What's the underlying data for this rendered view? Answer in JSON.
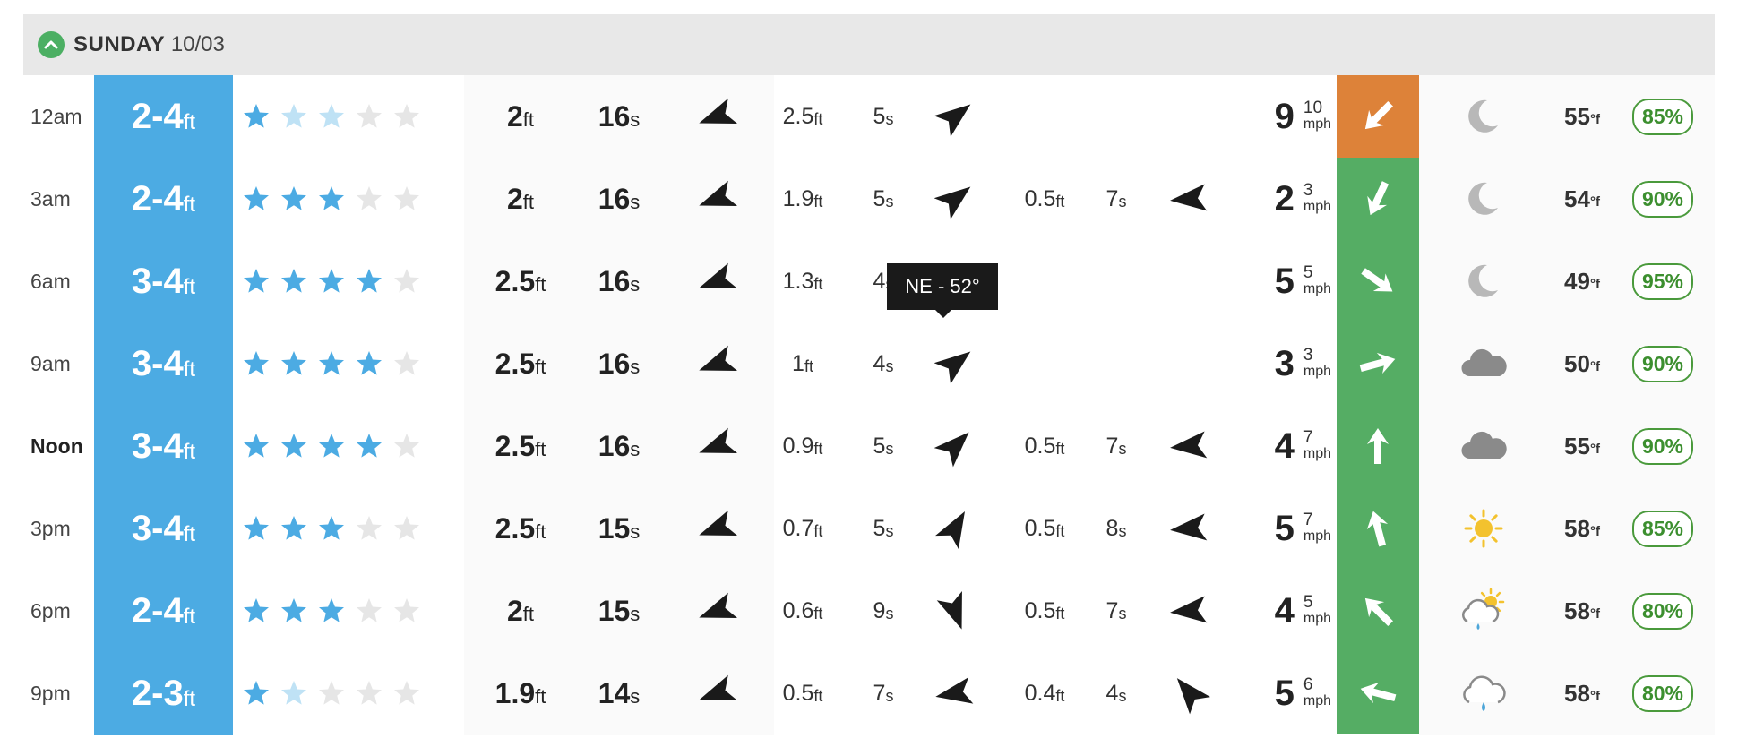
{
  "header": {
    "day_name": "SUNDAY",
    "date": "10/03",
    "collapse_icon": "chevron-up-icon"
  },
  "tooltip": {
    "text": "NE - 52°"
  },
  "colors": {
    "surf_band": "#4cabe3",
    "wind_onshore": "#dd8239",
    "wind_offshore": "#55ad64",
    "star_full": "#4cabe3",
    "star_faint": "#bfe2f5",
    "star_empty": "#e6e6e6",
    "prob_green": "#3c8f2f"
  },
  "rows": [
    {
      "time": "12am",
      "bold": false,
      "surf": "2-4",
      "surf_unit": "ft",
      "stars": [
        "full",
        "faint",
        "faint",
        "empty",
        "empty"
      ],
      "primary": {
        "height": "2",
        "height_unit": "ft",
        "period": "16",
        "period_unit": "s",
        "dir_deg": 250
      },
      "sec1": {
        "height": "2.5",
        "height_unit": "ft",
        "period": "5",
        "period_unit": "s",
        "dir_deg": 52
      },
      "sec2": null,
      "wind": {
        "speed": "9",
        "gust": "10",
        "unit": "mph",
        "dir_deg": 225,
        "color": "#dd8239"
      },
      "weather_icon": "moon-icon",
      "temp": "55",
      "temp_unit": "°f",
      "prob": "85%"
    },
    {
      "time": "3am",
      "bold": false,
      "surf": "2-4",
      "surf_unit": "ft",
      "stars": [
        "full",
        "full",
        "full",
        "empty",
        "empty"
      ],
      "primary": {
        "height": "2",
        "height_unit": "ft",
        "period": "16",
        "period_unit": "s",
        "dir_deg": 250
      },
      "sec1": {
        "height": "1.9",
        "height_unit": "ft",
        "period": "5",
        "period_unit": "s",
        "dir_deg": 52
      },
      "sec2": {
        "height": "0.5",
        "height_unit": "ft",
        "period": "7",
        "period_unit": "s",
        "dir_deg": 265
      },
      "wind": {
        "speed": "2",
        "gust": "3",
        "unit": "mph",
        "dir_deg": 205,
        "color": "#55ad64"
      },
      "weather_icon": "moon-icon",
      "temp": "54",
      "temp_unit": "°f",
      "prob": "90%"
    },
    {
      "time": "6am",
      "bold": false,
      "surf": "3-4",
      "surf_unit": "ft",
      "stars": [
        "full",
        "full",
        "full",
        "full",
        "empty"
      ],
      "primary": {
        "height": "2.5",
        "height_unit": "ft",
        "period": "16",
        "period_unit": "s",
        "dir_deg": 250
      },
      "sec1": {
        "height": "1.3",
        "height_unit": "ft",
        "period": "4",
        "period_unit": "s",
        "dir_deg": 40
      },
      "sec2": null,
      "wind": {
        "speed": "5",
        "gust": "5",
        "unit": "mph",
        "dir_deg": 125,
        "color": "#55ad64"
      },
      "weather_icon": "moon-icon",
      "temp": "49",
      "temp_unit": "°f",
      "prob": "95%"
    },
    {
      "time": "9am",
      "bold": false,
      "surf": "3-4",
      "surf_unit": "ft",
      "stars": [
        "full",
        "full",
        "full",
        "full",
        "empty"
      ],
      "primary": {
        "height": "2.5",
        "height_unit": "ft",
        "period": "16",
        "period_unit": "s",
        "dir_deg": 250
      },
      "sec1": {
        "height": "1",
        "height_unit": "ft",
        "period": "4",
        "period_unit": "s",
        "dir_deg": 52
      },
      "sec2": null,
      "wind": {
        "speed": "3",
        "gust": "3",
        "unit": "mph",
        "dir_deg": 75,
        "color": "#55ad64"
      },
      "weather_icon": "cloud-icon",
      "temp": "50",
      "temp_unit": "°f",
      "prob": "90%"
    },
    {
      "time": "Noon",
      "bold": true,
      "surf": "3-4",
      "surf_unit": "ft",
      "stars": [
        "full",
        "full",
        "full",
        "full",
        "empty"
      ],
      "primary": {
        "height": "2.5",
        "height_unit": "ft",
        "period": "16",
        "period_unit": "s",
        "dir_deg": 250
      },
      "sec1": {
        "height": "0.9",
        "height_unit": "ft",
        "period": "5",
        "period_unit": "s",
        "dir_deg": 45
      },
      "sec2": {
        "height": "0.5",
        "height_unit": "ft",
        "period": "7",
        "period_unit": "s",
        "dir_deg": 265
      },
      "wind": {
        "speed": "4",
        "gust": "7",
        "unit": "mph",
        "dir_deg": 0,
        "color": "#55ad64"
      },
      "weather_icon": "cloud-icon",
      "temp": "55",
      "temp_unit": "°f",
      "prob": "90%"
    },
    {
      "time": "3pm",
      "bold": false,
      "surf": "3-4",
      "surf_unit": "ft",
      "stars": [
        "full",
        "full",
        "full",
        "empty",
        "empty"
      ],
      "primary": {
        "height": "2.5",
        "height_unit": "ft",
        "period": "15",
        "period_unit": "s",
        "dir_deg": 250
      },
      "sec1": {
        "height": "0.7",
        "height_unit": "ft",
        "period": "5",
        "period_unit": "s",
        "dir_deg": 30
      },
      "sec2": {
        "height": "0.5",
        "height_unit": "ft",
        "period": "8",
        "period_unit": "s",
        "dir_deg": 265
      },
      "wind": {
        "speed": "5",
        "gust": "7",
        "unit": "mph",
        "dir_deg": 345,
        "color": "#55ad64"
      },
      "weather_icon": "sun-icon",
      "temp": "58",
      "temp_unit": "°f",
      "prob": "85%"
    },
    {
      "time": "6pm",
      "bold": false,
      "surf": "2-4",
      "surf_unit": "ft",
      "stars": [
        "full",
        "full",
        "full",
        "empty",
        "empty"
      ],
      "primary": {
        "height": "2",
        "height_unit": "ft",
        "period": "15",
        "period_unit": "s",
        "dir_deg": 250
      },
      "sec1": {
        "height": "0.6",
        "height_unit": "ft",
        "period": "9",
        "period_unit": "s",
        "dir_deg": 160
      },
      "sec2": {
        "height": "0.5",
        "height_unit": "ft",
        "period": "7",
        "period_unit": "s",
        "dir_deg": 265
      },
      "wind": {
        "speed": "4",
        "gust": "5",
        "unit": "mph",
        "dir_deg": 315,
        "color": "#55ad64"
      },
      "weather_icon": "sun-rain-cloud-icon",
      "temp": "58",
      "temp_unit": "°f",
      "prob": "80%"
    },
    {
      "time": "9pm",
      "bold": false,
      "surf": "2-3",
      "surf_unit": "ft",
      "stars": [
        "full",
        "faint",
        "empty",
        "empty",
        "empty"
      ],
      "primary": {
        "height": "1.9",
        "height_unit": "ft",
        "period": "14",
        "period_unit": "s",
        "dir_deg": 250
      },
      "sec1": {
        "height": "0.5",
        "height_unit": "ft",
        "period": "7",
        "period_unit": "s",
        "dir_deg": 260
      },
      "sec2": {
        "height": "0.4",
        "height_unit": "ft",
        "period": "4",
        "period_unit": "s",
        "dir_deg": 320
      },
      "wind": {
        "speed": "5",
        "gust": "6",
        "unit": "mph",
        "dir_deg": 285,
        "color": "#55ad64"
      },
      "weather_icon": "rain-cloud-icon",
      "temp": "58",
      "temp_unit": "°f",
      "prob": "80%"
    }
  ]
}
